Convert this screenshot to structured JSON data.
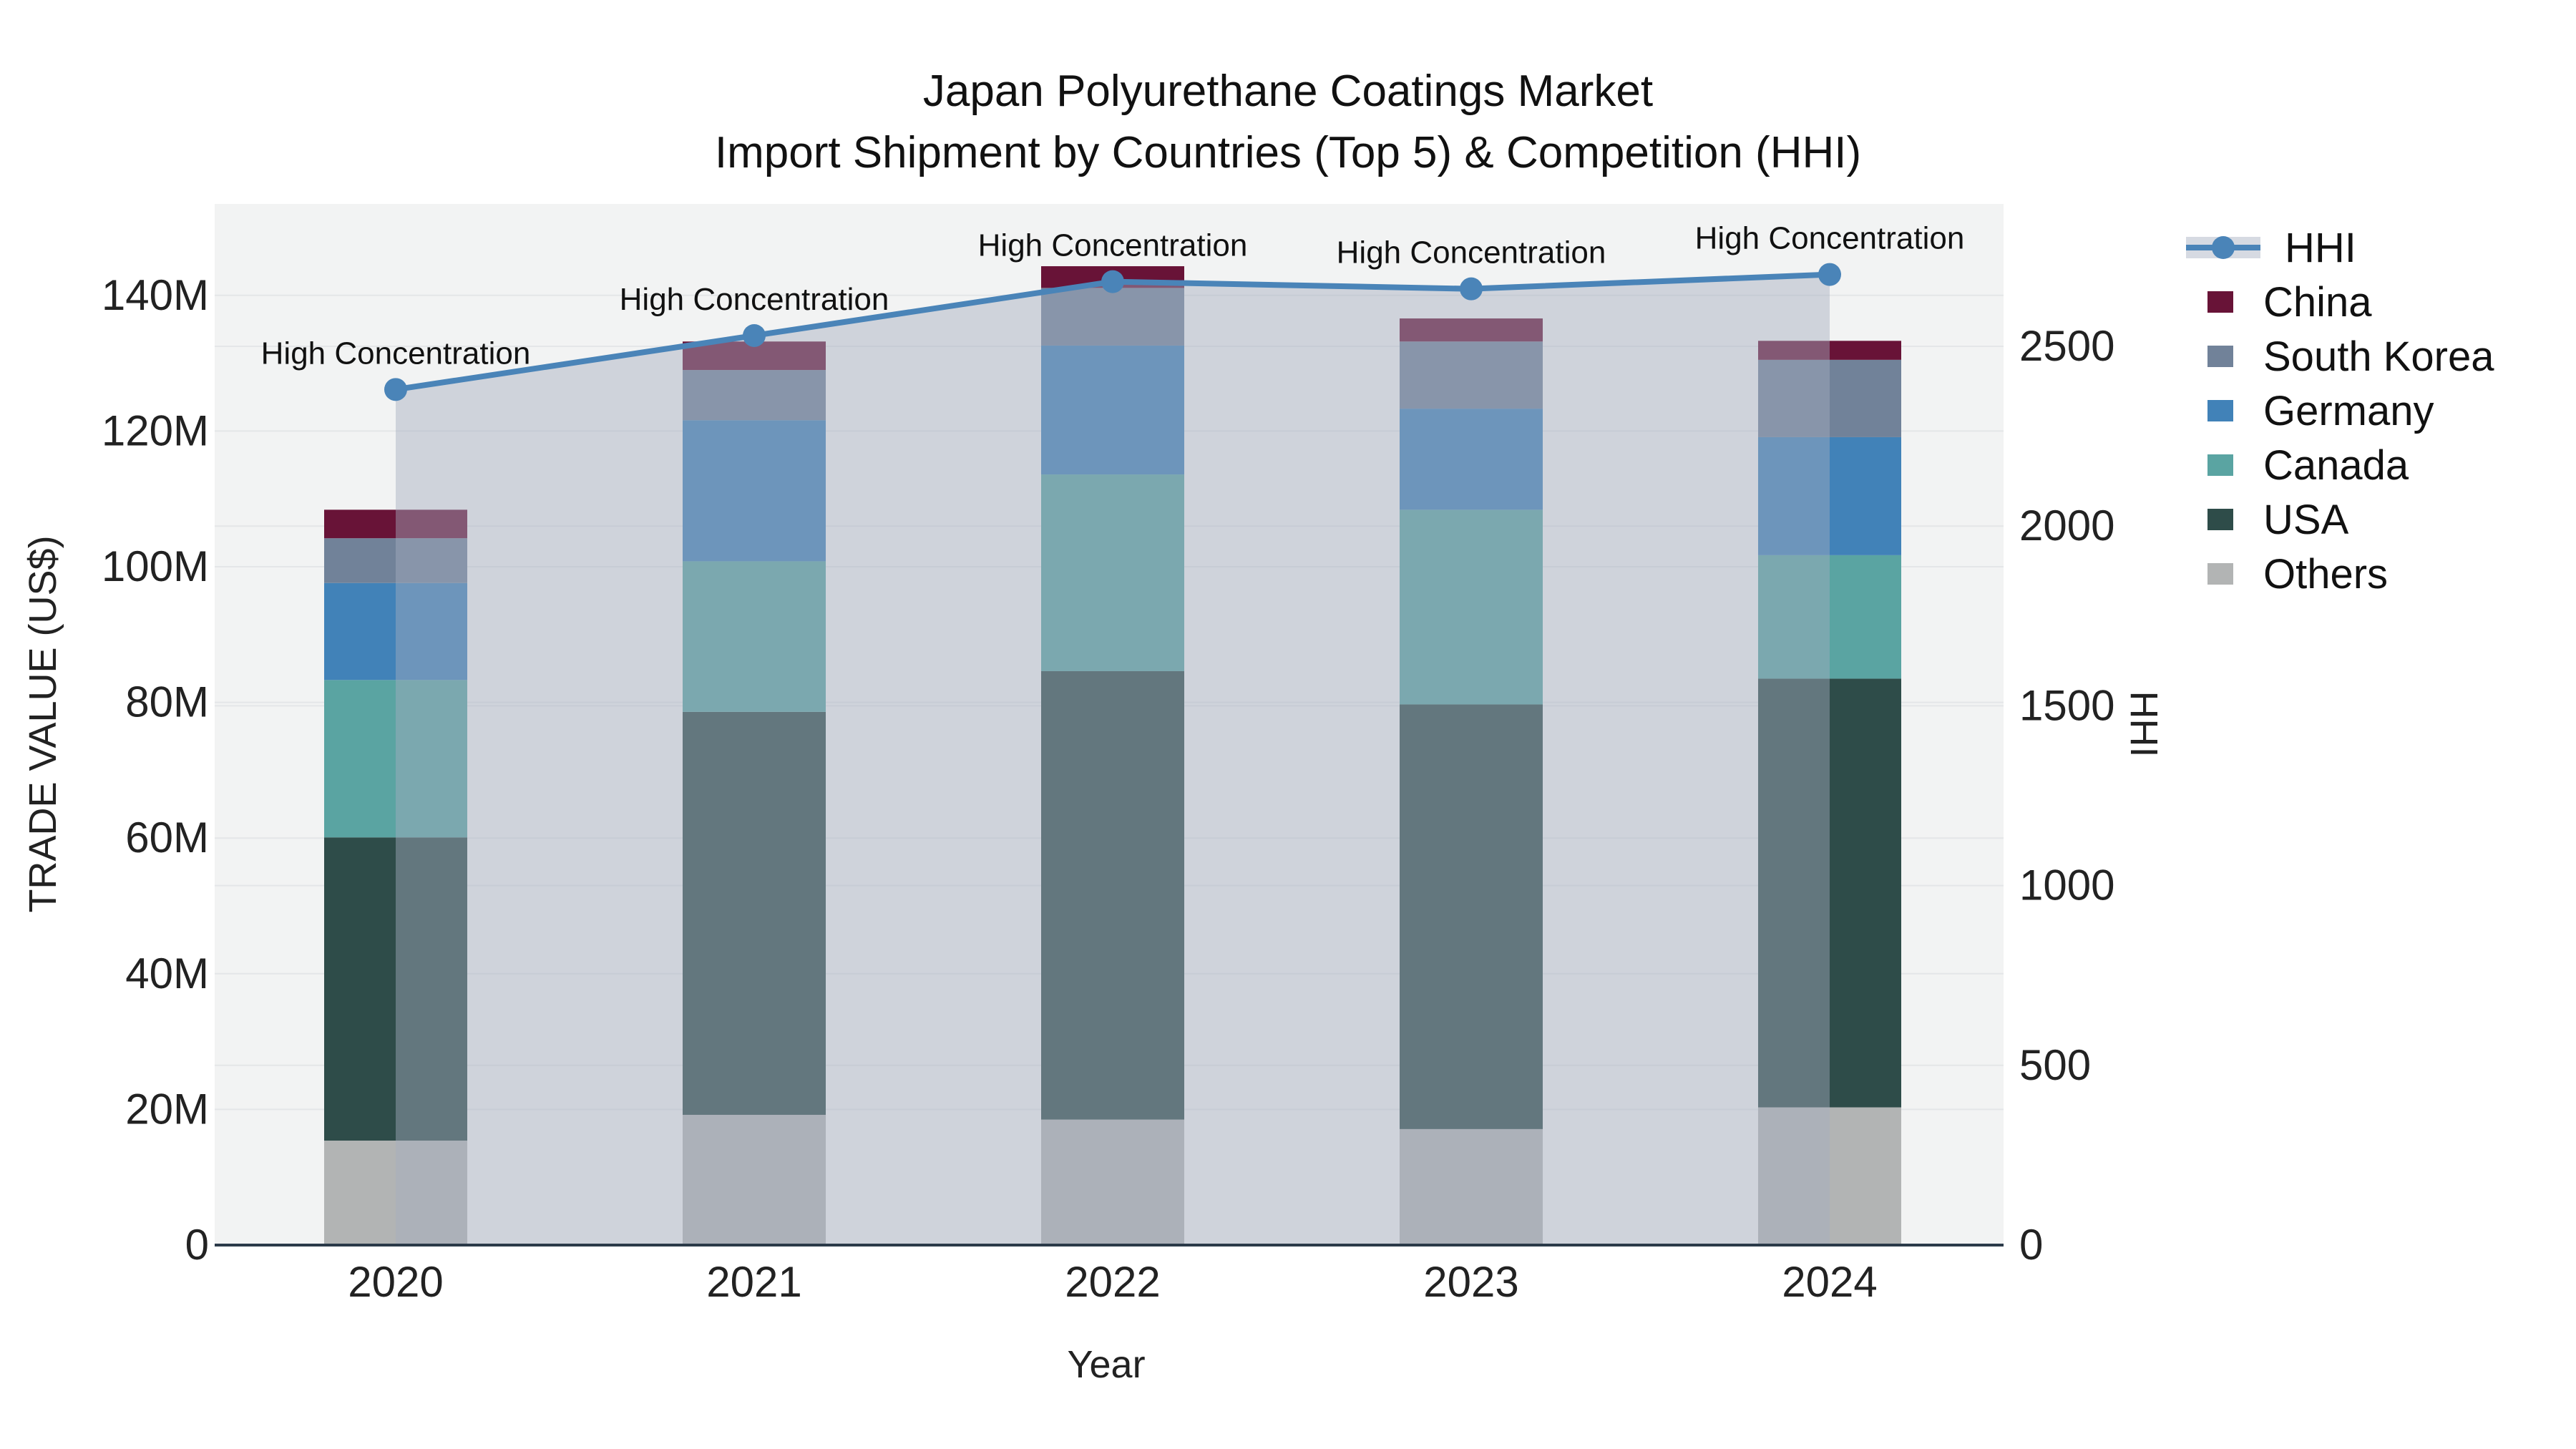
{
  "title": {
    "line1": "Japan Polyurethane Coatings Market",
    "line2": "Import Shipment by Countries (Top 5) & Competition (HHI)"
  },
  "axes": {
    "y_left": {
      "title": "TRADE VALUE (US$)",
      "ticks": [
        "0",
        "20M",
        "40M",
        "60M",
        "80M",
        "100M",
        "120M",
        "140M"
      ]
    },
    "y_right": {
      "title": "HHI",
      "ticks": [
        "0",
        "500",
        "1000",
        "1500",
        "2000",
        "2500"
      ]
    },
    "x": {
      "title": "Year",
      "ticks": [
        "2020",
        "2021",
        "2022",
        "2023",
        "2024"
      ]
    }
  },
  "annotation_label": "High Concentration",
  "legend": {
    "items": [
      {
        "label": "HHI",
        "type": "line",
        "color": "#4a84b8"
      },
      {
        "label": "China",
        "type": "swatch",
        "color": "#681337"
      },
      {
        "label": "South Korea",
        "type": "swatch",
        "color": "#718299"
      },
      {
        "label": "Germany",
        "type": "swatch",
        "color": "#4182b8"
      },
      {
        "label": "Canada",
        "type": "swatch",
        "color": "#5aa4a2"
      },
      {
        "label": "USA",
        "type": "swatch",
        "color": "#2e4c49"
      },
      {
        "label": "Others",
        "type": "swatch",
        "color": "#b2b4b4"
      }
    ]
  },
  "colors": {
    "plot_bg": "#f2f3f3",
    "grid": "#e4e6e8",
    "axis_line": "#2b3a49",
    "hhi_line": "#4a84b8",
    "hhi_fill": "rgba(163,173,190,0.45)"
  },
  "chart_data": {
    "type": "combo: stacked bar (left axis, trade value US$) + line with area fill (right axis, HHI)",
    "title": "Japan Polyurethane Coatings Market — Import Shipment by Countries (Top 5) & Competition (HHI)",
    "xlabel": "Year",
    "ylabel_left": "TRADE VALUE (US$)",
    "ylabel_right": "HHI",
    "categories": [
      "2020",
      "2021",
      "2022",
      "2023",
      "2024"
    ],
    "bar_unit": "million US$",
    "stack_order_bottom_to_top": [
      "Others",
      "USA",
      "Canada",
      "Germany",
      "South Korea",
      "China"
    ],
    "series": [
      {
        "name": "Others",
        "color": "#b2b4b4",
        "values": [
          15.4,
          19.2,
          18.5,
          17.1,
          20.3
        ]
      },
      {
        "name": "USA",
        "color": "#2e4c49",
        "values": [
          44.7,
          59.4,
          66.1,
          62.6,
          63.2
        ]
      },
      {
        "name": "Canada",
        "color": "#5aa4a2",
        "values": [
          23.2,
          22.2,
          29.0,
          28.7,
          18.2
        ]
      },
      {
        "name": "Germany",
        "color": "#4182b8",
        "values": [
          14.3,
          20.8,
          19.0,
          14.9,
          17.4
        ]
      },
      {
        "name": "South Korea",
        "color": "#718299",
        "values": [
          6.6,
          7.4,
          8.5,
          9.9,
          11.4
        ]
      },
      {
        "name": "China",
        "color": "#681337",
        "values": [
          4.2,
          4.2,
          3.2,
          3.4,
          2.8
        ]
      }
    ],
    "stack_totals": [
      108.4,
      133.2,
      144.3,
      136.6,
      133.3
    ],
    "line_series": {
      "name": "HHI",
      "axis": "right",
      "color": "#4a84b8",
      "fill_color": "rgba(163,173,190,0.45)",
      "values": [
        2380,
        2530,
        2680,
        2660,
        2700
      ]
    },
    "annotations": [
      {
        "text": "High Concentration",
        "x": "2020"
      },
      {
        "text": "High Concentration",
        "x": "2021"
      },
      {
        "text": "High Concentration",
        "x": "2022"
      },
      {
        "text": "High Concentration",
        "x": "2023"
      },
      {
        "text": "High Concentration",
        "x": "2024"
      }
    ],
    "ylim_left": [
      0,
      153
    ],
    "ylim_right": [
      0,
      2890
    ],
    "grid": true,
    "legend_position": "right"
  }
}
